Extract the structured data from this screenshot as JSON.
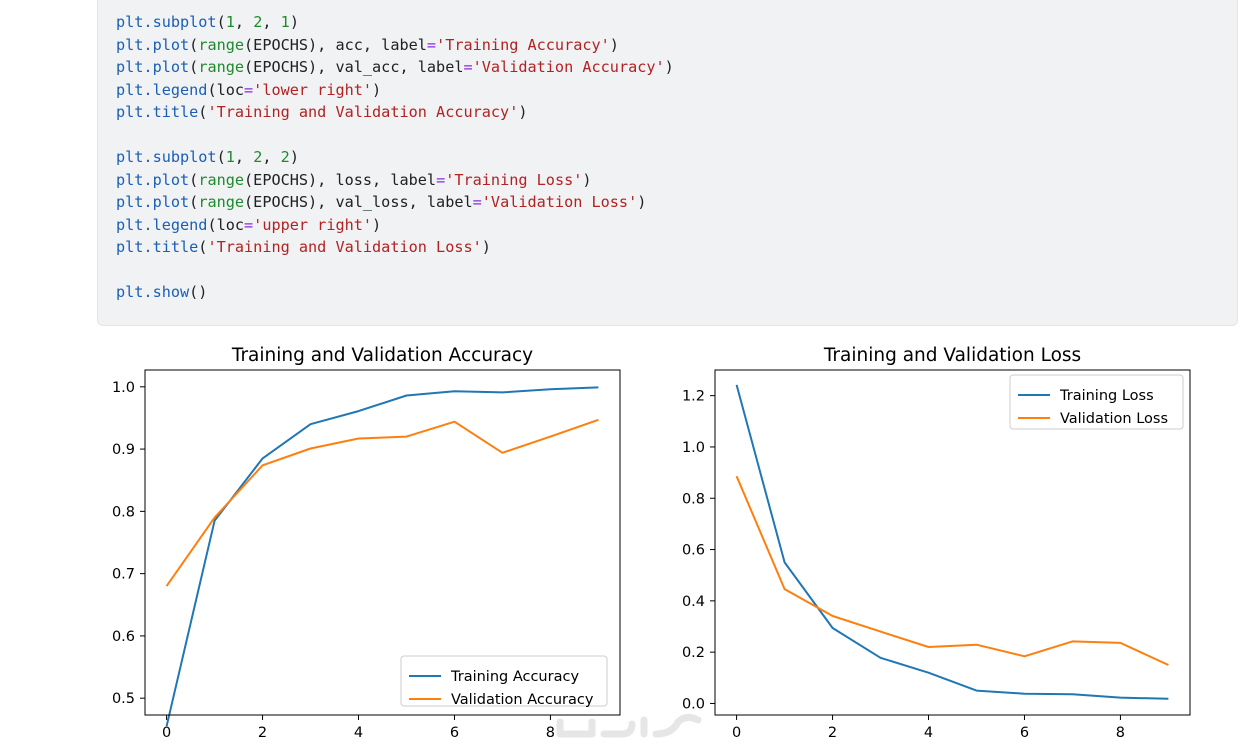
{
  "code_lines": [
    [
      [
        "fn",
        "plt.subplot"
      ],
      [
        "p",
        "("
      ],
      [
        "num",
        "1"
      ],
      [
        "p",
        ", "
      ],
      [
        "num",
        "2"
      ],
      [
        "p",
        ", "
      ],
      [
        "num",
        "1"
      ],
      [
        "p",
        ")"
      ]
    ],
    [
      [
        "fn",
        "plt.plot"
      ],
      [
        "p",
        "("
      ],
      [
        "num",
        "range"
      ],
      [
        "p",
        "(EPOCHS), acc, label"
      ],
      [
        "kw",
        "="
      ],
      [
        "str",
        "'Training Accuracy'"
      ],
      [
        "p",
        ")"
      ]
    ],
    [
      [
        "fn",
        "plt.plot"
      ],
      [
        "p",
        "("
      ],
      [
        "num",
        "range"
      ],
      [
        "p",
        "(EPOCHS), val_acc, label"
      ],
      [
        "kw",
        "="
      ],
      [
        "str",
        "'Validation Accuracy'"
      ],
      [
        "p",
        ")"
      ]
    ],
    [
      [
        "fn",
        "plt.legend"
      ],
      [
        "p",
        "(loc"
      ],
      [
        "kw",
        "="
      ],
      [
        "str",
        "'lower right'"
      ],
      [
        "p",
        ")"
      ]
    ],
    [
      [
        "fn",
        "plt.title"
      ],
      [
        "p",
        "("
      ],
      [
        "str",
        "'Training and Validation Accuracy'"
      ],
      [
        "p",
        ")"
      ]
    ],
    [],
    [
      [
        "fn",
        "plt.subplot"
      ],
      [
        "p",
        "("
      ],
      [
        "num",
        "1"
      ],
      [
        "p",
        ", "
      ],
      [
        "num",
        "2"
      ],
      [
        "p",
        ", "
      ],
      [
        "num",
        "2"
      ],
      [
        "p",
        ")"
      ]
    ],
    [
      [
        "fn",
        "plt.plot"
      ],
      [
        "p",
        "("
      ],
      [
        "num",
        "range"
      ],
      [
        "p",
        "(EPOCHS), loss, label"
      ],
      [
        "kw",
        "="
      ],
      [
        "str",
        "'Training Loss'"
      ],
      [
        "p",
        ")"
      ]
    ],
    [
      [
        "fn",
        "plt.plot"
      ],
      [
        "p",
        "("
      ],
      [
        "num",
        "range"
      ],
      [
        "p",
        "(EPOCHS), val_loss, label"
      ],
      [
        "kw",
        "="
      ],
      [
        "str",
        "'Validation Loss'"
      ],
      [
        "p",
        ")"
      ]
    ],
    [
      [
        "fn",
        "plt.legend"
      ],
      [
        "p",
        "(loc"
      ],
      [
        "kw",
        "="
      ],
      [
        "str",
        "'upper right'"
      ],
      [
        "p",
        ")"
      ]
    ],
    [
      [
        "fn",
        "plt.title"
      ],
      [
        "p",
        "("
      ],
      [
        "str",
        "'Training and Validation Loss'"
      ],
      [
        "p",
        ")"
      ]
    ],
    [],
    [
      [
        "fn",
        "plt.show"
      ],
      [
        "p",
        "()"
      ]
    ]
  ],
  "colors": {
    "training": "#1f77b4",
    "validation": "#ff7f0e"
  },
  "chart_data": [
    {
      "type": "line",
      "title": "Training and Validation Accuracy",
      "xlabel": "",
      "ylabel": "",
      "x": [
        0,
        1,
        2,
        3,
        4,
        5,
        6,
        7,
        8,
        9
      ],
      "xlim": [
        -0.45,
        9.45
      ],
      "ylim": [
        0.473,
        1.027
      ],
      "xticks": [
        0,
        2,
        4,
        6,
        8
      ],
      "yticks": [
        0.5,
        0.6,
        0.7,
        0.8,
        0.9,
        1.0
      ],
      "ytick_labels": [
        "0.5",
        "0.6",
        "0.7",
        "0.8",
        "0.9",
        "1.0"
      ],
      "legend_position": "lower-right",
      "series": [
        {
          "name": "Training Accuracy",
          "color": "#1f77b4",
          "values": [
            0.455,
            0.785,
            0.885,
            0.94,
            0.961,
            0.986,
            0.993,
            0.991,
            0.996,
            0.999
          ]
        },
        {
          "name": "Validation Accuracy",
          "color": "#ff7f0e",
          "values": [
            0.68,
            0.79,
            0.874,
            0.901,
            0.917,
            0.92,
            0.944,
            0.894,
            0.92,
            0.947
          ]
        }
      ]
    },
    {
      "type": "line",
      "title": "Training and Validation Loss",
      "xlabel": "",
      "ylabel": "",
      "x": [
        0,
        1,
        2,
        3,
        4,
        5,
        6,
        7,
        8,
        9
      ],
      "xlim": [
        -0.45,
        9.45
      ],
      "ylim": [
        -0.045,
        1.3
      ],
      "xticks": [
        0,
        2,
        4,
        6,
        8
      ],
      "yticks": [
        0.0,
        0.2,
        0.4,
        0.6,
        0.8,
        1.0,
        1.2
      ],
      "ytick_labels": [
        "0.0",
        "0.2",
        "0.4",
        "0.6",
        "0.8",
        "1.0",
        "1.2"
      ],
      "legend_position": "upper-right",
      "series": [
        {
          "name": "Training Loss",
          "color": "#1f77b4",
          "values": [
            1.242,
            0.55,
            0.294,
            0.178,
            0.12,
            0.05,
            0.038,
            0.036,
            0.023,
            0.018
          ]
        },
        {
          "name": "Validation Loss",
          "color": "#ff7f0e",
          "values": [
            0.886,
            0.446,
            0.341,
            0.28,
            0.22,
            0.229,
            0.184,
            0.242,
            0.236,
            0.15
          ]
        }
      ]
    }
  ]
}
